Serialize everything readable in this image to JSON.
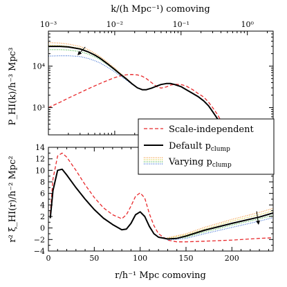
{
  "colors": {
    "scale_independent": "#e8282b",
    "default": "#000000",
    "varying": [
      "#f28c28",
      "#d4c21a",
      "#3cae3c",
      "#2f66d0"
    ]
  },
  "chart_data": [
    {
      "id": "power",
      "type": "line",
      "x_scale": "log",
      "y_scale": "log",
      "xlim": [
        0.001,
        2.45
      ],
      "ylim": [
        220,
        70000
      ],
      "xlabel": "k/(h Mpc⁻¹) comoving",
      "ylabel": "P_HI(k)/h⁻³ Mpc³",
      "xaxis_position": "top",
      "xticks": [
        0.001,
        0.01,
        0.1,
        1
      ],
      "xticklabels": [
        "10⁻³",
        "10⁻²",
        "10⁻¹",
        "10⁰"
      ],
      "yticks": [
        1000,
        10000
      ],
      "yticklabels": [
        "10³",
        "10⁴"
      ],
      "series": [
        {
          "name": "Scale-independent",
          "style": "dashed",
          "x": [
            0.001,
            0.0015,
            0.002,
            0.003,
            0.004,
            0.006,
            0.008,
            0.01,
            0.012,
            0.015,
            0.018,
            0.022,
            0.026,
            0.03,
            0.036,
            0.043,
            0.05,
            0.06,
            0.07,
            0.08,
            0.1,
            0.12,
            0.15,
            0.18,
            0.22,
            0.26,
            0.3,
            0.35,
            0.4
          ],
          "y": [
            1000,
            1350,
            1700,
            2300,
            2850,
            3800,
            4600,
            5300,
            5800,
            6200,
            6300,
            6150,
            5700,
            5000,
            4000,
            3200,
            2950,
            3150,
            3500,
            3650,
            3600,
            3300,
            2700,
            2200,
            1800,
            1350,
            1000,
            700,
            480
          ]
        },
        {
          "name": "Default p_clump",
          "style": "solid",
          "x": [
            0.001,
            0.0015,
            0.002,
            0.003,
            0.004,
            0.005,
            0.006,
            0.008,
            0.01,
            0.012,
            0.015,
            0.018,
            0.022,
            0.026,
            0.03,
            0.036,
            0.043,
            0.05,
            0.06,
            0.07,
            0.08,
            0.1,
            0.12,
            0.15,
            0.18,
            0.22,
            0.26,
            0.3,
            0.35,
            0.4
          ],
          "y": [
            30000,
            30000,
            29000,
            26000,
            22000,
            18500,
            15500,
            11000,
            8300,
            6500,
            4900,
            3800,
            3000,
            2700,
            2700,
            2950,
            3300,
            3600,
            3800,
            3800,
            3600,
            3200,
            2700,
            2200,
            1850,
            1450,
            1100,
            800,
            550,
            400
          ]
        },
        {
          "name": "Varying p_clump",
          "style": "dotted",
          "members": [
            {
              "x": [
                0.001,
                0.0015,
                0.002,
                0.003,
                0.004,
                0.005,
                0.006,
                0.008,
                0.01,
                0.012,
                0.015,
                0.018
              ],
              "y": [
                37000,
                36000,
                34000,
                30000,
                25000,
                20500,
                17000,
                12000,
                9000,
                6900,
                5100,
                3900
              ]
            },
            {
              "x": [
                0.001,
                0.0015,
                0.002,
                0.003,
                0.004,
                0.005,
                0.006,
                0.008,
                0.01,
                0.012,
                0.015,
                0.018
              ],
              "y": [
                32000,
                31500,
                30000,
                27000,
                22500,
                19000,
                16000,
                11200,
                8500,
                6600,
                5000,
                3850
              ]
            },
            {
              "x": [
                0.001,
                0.0015,
                0.002,
                0.003,
                0.004,
                0.005,
                0.006,
                0.008,
                0.01,
                0.012,
                0.015,
                0.018
              ],
              "y": [
                25000,
                25000,
                24500,
                22500,
                19500,
                16800,
                14500,
                10500,
                8000,
                6300,
                4800,
                3800
              ]
            },
            {
              "x": [
                0.001,
                0.0015,
                0.002,
                0.003,
                0.004,
                0.005,
                0.006,
                0.008,
                0.01,
                0.012,
                0.015,
                0.018
              ],
              "y": [
                17500,
                17800,
                17800,
                17000,
                15300,
                13500,
                12000,
                9200,
                7300,
                5900,
                4600,
                3700
              ]
            }
          ]
        }
      ],
      "annotations": [
        {
          "type": "arrow",
          "from": [
            0.0036,
            29000
          ],
          "to": [
            0.0028,
            19000
          ],
          "label": ""
        }
      ]
    },
    {
      "id": "correlation",
      "type": "line",
      "x_scale": "linear",
      "y_scale": "linear",
      "xlim": [
        0,
        245
      ],
      "ylim": [
        -4,
        14
      ],
      "xlabel": "r/h⁻¹ Mpc comoving",
      "ylabel": "r² ξ_HI(r)/h⁻² Mpc²",
      "xticks": [
        0,
        50,
        100,
        150,
        200
      ],
      "xticklabels": [
        "0",
        "50",
        "100",
        "150",
        "200"
      ],
      "yticks": [
        -4,
        -2,
        0,
        2,
        4,
        6,
        8,
        10,
        12,
        14
      ],
      "yticklabels": [
        "−4",
        "−2",
        "0",
        "2",
        "4",
        "6",
        "8",
        "10",
        "12",
        "14"
      ],
      "legend": {
        "placement": "top-right",
        "entries": [
          "Scale-independent",
          "Default p",
          "Varying p"
        ],
        "subscripts": [
          "",
          "clump",
          "clump"
        ]
      },
      "series": [
        {
          "name": "Scale-independent",
          "style": "dashed",
          "x": [
            2,
            5,
            10,
            15,
            20,
            30,
            40,
            50,
            60,
            70,
            80,
            85,
            90,
            95,
            100,
            105,
            110,
            115,
            120,
            130,
            140,
            150,
            170,
            200,
            230,
            245
          ],
          "y": [
            2.5,
            8.5,
            12.5,
            13,
            12.3,
            10,
            7.5,
            5.3,
            3.5,
            2.3,
            1.6,
            2.3,
            3.8,
            5.5,
            6.1,
            5.2,
            2.5,
            0.4,
            -1,
            -2.1,
            -2.4,
            -2.4,
            -2.3,
            -2.1,
            -1.8,
            -1.7
          ]
        },
        {
          "name": "Default p_clump",
          "style": "solid",
          "x": [
            2,
            5,
            10,
            15,
            20,
            30,
            40,
            50,
            60,
            70,
            80,
            85,
            90,
            95,
            100,
            105,
            110,
            115,
            120,
            130,
            140,
            150,
            170,
            200,
            230,
            245
          ],
          "y": [
            1.7,
            6.5,
            10,
            10.2,
            9.2,
            7,
            5,
            3.2,
            1.7,
            0.6,
            -0.3,
            -0.2,
            0.8,
            2.3,
            2.8,
            2.0,
            0.3,
            -1,
            -1.6,
            -1.9,
            -1.8,
            -1.4,
            -0.4,
            0.8,
            1.9,
            2.6
          ]
        },
        {
          "name": "Varying p_clump",
          "style": "dotted",
          "members": [
            {
              "x": [
                130,
                150,
                170,
                200,
                230,
                245
              ],
              "y": [
                -1.7,
                -1.0,
                0.1,
                1.5,
                2.7,
                3.4
              ]
            },
            {
              "x": [
                130,
                150,
                170,
                200,
                230,
                245
              ],
              "y": [
                -1.8,
                -1.2,
                -0.2,
                1.2,
                2.3,
                3.0
              ]
            },
            {
              "x": [
                130,
                150,
                170,
                200,
                230,
                245
              ],
              "y": [
                -2.0,
                -1.6,
                -0.7,
                0.5,
                1.6,
                2.2
              ]
            },
            {
              "x": [
                130,
                150,
                170,
                200,
                230,
                245
              ],
              "y": [
                -2.1,
                -1.8,
                -1.0,
                0.1,
                1.2,
                1.8
              ]
            }
          ]
        }
      ],
      "annotations": [
        {
          "type": "arrow",
          "from": [
            227,
            2.9
          ],
          "to": [
            229,
            0.7
          ],
          "label": ""
        }
      ]
    }
  ]
}
